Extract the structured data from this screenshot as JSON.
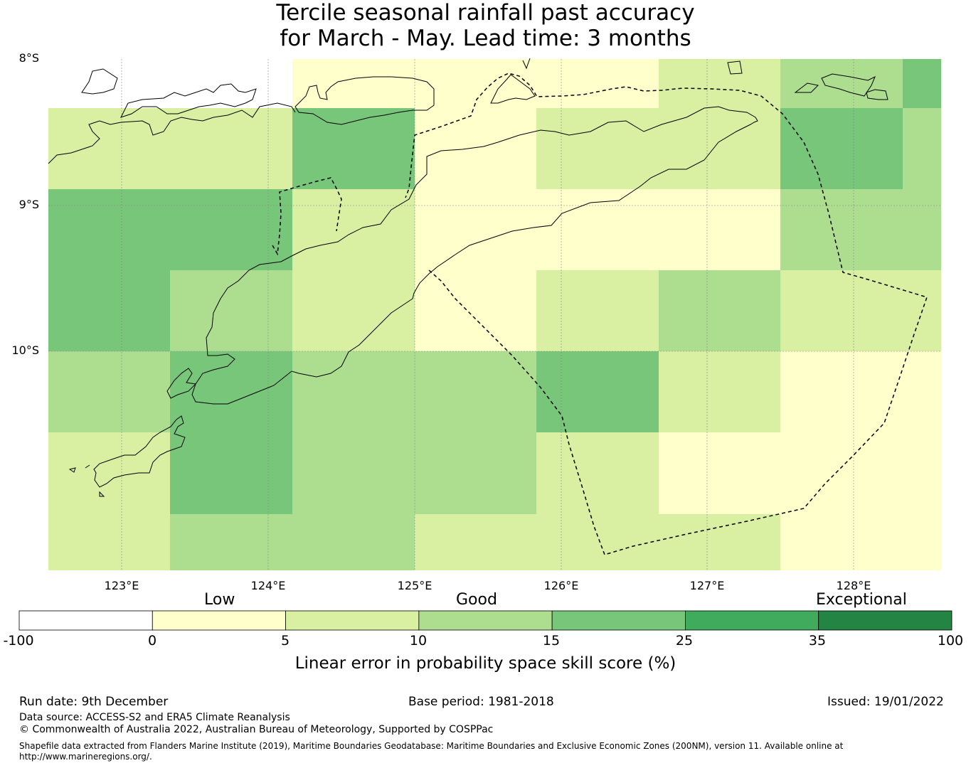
{
  "title": {
    "line1": "Tercile seasonal rainfall past accuracy",
    "line2": "for March - May. Lead time: 3 months"
  },
  "map": {
    "lat_labels": [
      "8°S",
      "9°S",
      "10°S"
    ],
    "lon_labels": [
      "123°E",
      "124°E",
      "125°E",
      "126°E",
      "127°E",
      "128°E"
    ]
  },
  "legend": {
    "category_labels": {
      "low": "Low",
      "good": "Good",
      "exceptional": "Exceptional"
    },
    "ticks": [
      "-100",
      "0",
      "5",
      "10",
      "15",
      "25",
      "35",
      "100"
    ],
    "title": "Linear error in probability space skill score (%)",
    "colors": [
      "#ffffff",
      "#ffffcc",
      "#d9f0a3",
      "#addd8e",
      "#78c679",
      "#41ab5d",
      "#238443"
    ]
  },
  "footer": {
    "run_date": "Run date: 9th December",
    "base_period": "Base period: 1981-2018",
    "issued": "Issued: 19/01/2022",
    "data_source": "Data source: ACCESS-S2 and ERA5 Climate Reanalysis",
    "copyright": "© Commonwealth of Australia 2022, Australian Bureau of Meteorology, Supported by COSPPac",
    "shapefile_line1": "Shapefile data extracted from Flanders Marine Institute (2019), Maritime Boundaries Geodatabase: Maritime Boundaries and Exclusive Economic Zones (200NM), version 11. Available online at",
    "shapefile_line2": "http://www.marineregions.org/."
  },
  "skill_grid": {
    "description_rows": "rows from north to south, columns from west to east",
    "values": [
      [
        null,
        null,
        1,
        1,
        1,
        2,
        3,
        4
      ],
      [
        2,
        2,
        4,
        1,
        2,
        2,
        4,
        3
      ],
      [
        4,
        4,
        2,
        1,
        1,
        1,
        3,
        3
      ],
      [
        4,
        3,
        2,
        1,
        2,
        3,
        2,
        2
      ],
      [
        3,
        4,
        3,
        3,
        4,
        2,
        1,
        1
      ],
      [
        2,
        4,
        3,
        3,
        2,
        1,
        1,
        1
      ],
      [
        2,
        3,
        3,
        2,
        2,
        2,
        1,
        1
      ]
    ]
  }
}
